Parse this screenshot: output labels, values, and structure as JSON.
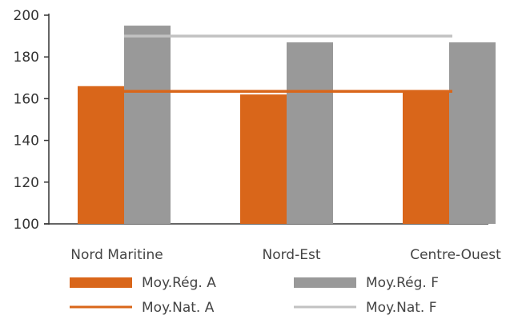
{
  "chart_data": {
    "type": "bar",
    "categories": [
      "Nord Maritine",
      "Nord-Est",
      "Centre-Ouest"
    ],
    "series": [
      {
        "name": "Moy.Rég. A",
        "kind": "bar",
        "color": "#d9661a",
        "values": [
          166,
          162,
          164
        ]
      },
      {
        "name": "Moy.Rég. F",
        "kind": "bar",
        "color": "#999999",
        "values": [
          195,
          187,
          187
        ]
      },
      {
        "name": "Moy.Nat. A",
        "kind": "line",
        "color": "#d9661a",
        "value": 163.5
      },
      {
        "name": "Moy.Nat. F",
        "kind": "line",
        "color": "#c2c2c2",
        "value": 190
      }
    ],
    "ylim": [
      100,
      200
    ],
    "yticks": [
      100,
      120,
      140,
      160,
      180,
      200
    ],
    "legend_position": "bottom",
    "grid": false
  }
}
